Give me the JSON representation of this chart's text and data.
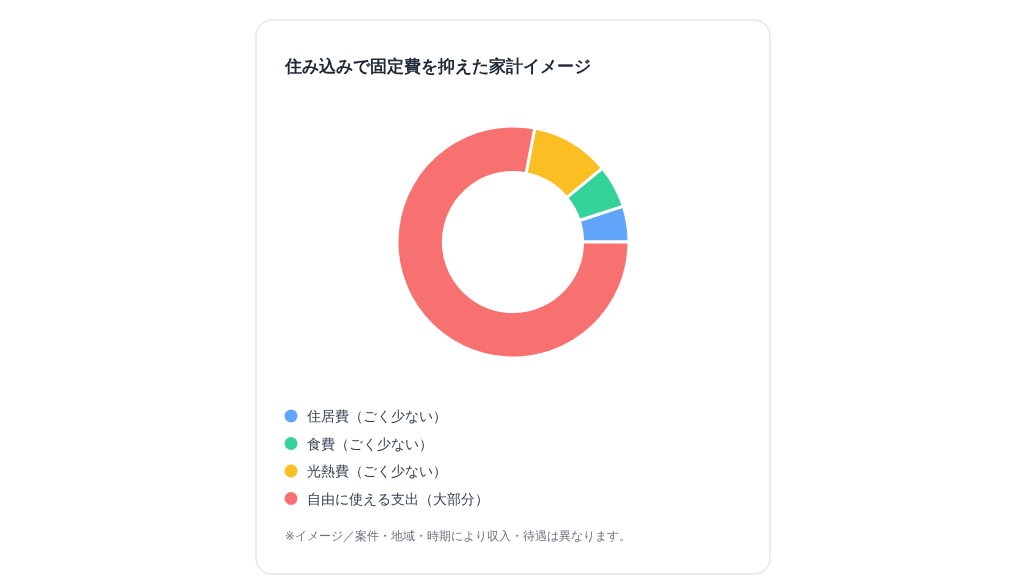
{
  "chart_data": {
    "type": "donut",
    "title": "住み込みで固定費を抑えた家計イメージ",
    "categories": [
      "住居費（ごく少ない）",
      "食費（ごく少ない）",
      "光熱費（ごく少ない）",
      "自由に使える支出（大部分）"
    ],
    "values": [
      5,
      6,
      11,
      78
    ],
    "colors": [
      "#60a5fa",
      "#34d399",
      "#fbbf24",
      "#f87171"
    ],
    "legend": "bottom",
    "annotations": [
      "※イメージ／案件・地域・時期により収入・待遇は異なります。"
    ]
  }
}
